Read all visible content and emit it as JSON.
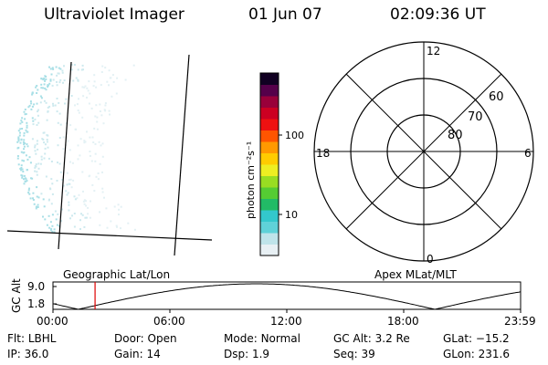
{
  "header": {
    "instrument": "Ultraviolet Imager",
    "date": "01 Jun 07",
    "time": "02:09:36 UT"
  },
  "left_panel": {
    "label": "Geographic Lat/Lon"
  },
  "colorbar": {
    "unit_label": "photon cm⁻²s⁻¹",
    "tick_100": "100",
    "tick_10": "10",
    "colors": [
      "#e8f0f4",
      "#bfe4ea",
      "#5fd2d8",
      "#33c8cc",
      "#22bb66",
      "#55cc33",
      "#99dd22",
      "#eeee22",
      "#ffcc00",
      "#ff9900",
      "#ff5500",
      "#ee1111",
      "#cc0022",
      "#99003a",
      "#55004a",
      "#110022"
    ]
  },
  "polar_plot": {
    "label": "Apex MLat/MLT",
    "mlt_labels": {
      "top": "12",
      "left": "18",
      "right": "6",
      "bottom": "0"
    },
    "lat_labels": {
      "outer": "60",
      "middle": "70",
      "inner": "80"
    }
  },
  "altitude_track": {
    "axis_title": "GC Alt",
    "y_ticks": [
      "9.0",
      "1.8"
    ],
    "x_ticks": [
      "00:00",
      "06:00",
      "12:00",
      "18:00",
      "23:59"
    ],
    "current_time_marker_hours": 2.16,
    "marker_color": "#dd0000"
  },
  "metadata": [
    {
      "label": "Flt:",
      "value": "LBHL"
    },
    {
      "label": "Door:",
      "value": "Open"
    },
    {
      "label": "Mode:",
      "value": "Normal"
    },
    {
      "label": "GC Alt:",
      "value": "3.2 Re"
    },
    {
      "label": "GLat:",
      "value": "−15.2"
    },
    {
      "label": "IP:",
      "value": "36.0"
    },
    {
      "label": "Gain:",
      "value": "14"
    },
    {
      "label": "Dsp:",
      "value": "1.9"
    },
    {
      "label": "Seq:",
      "value": "39"
    },
    {
      "label": "GLon:",
      "value": "231.6"
    }
  ]
}
